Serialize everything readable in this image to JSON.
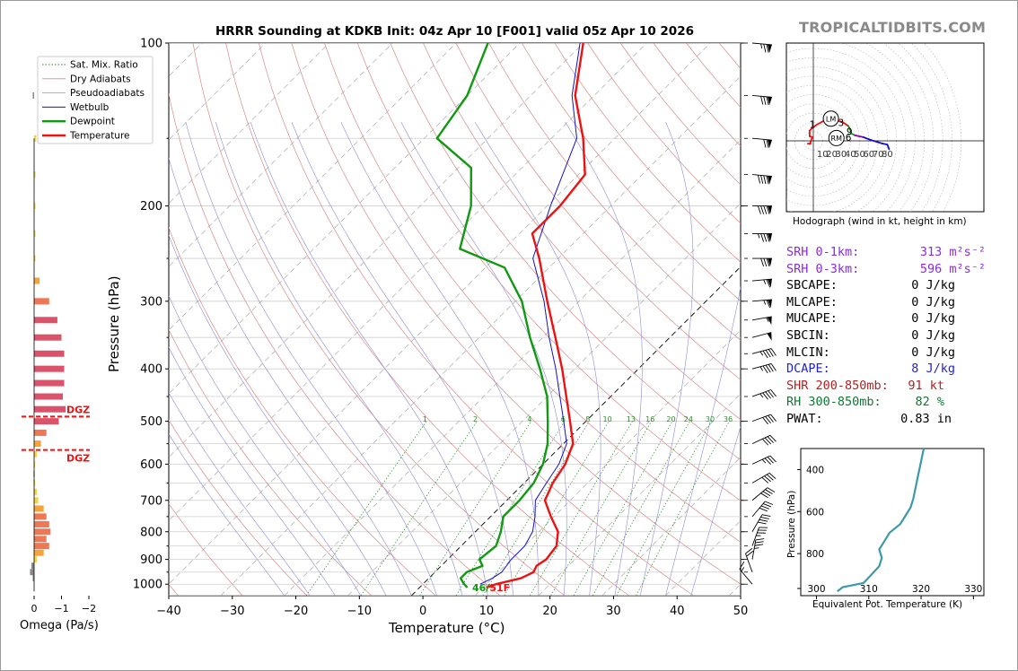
{
  "brand": "TROPICALTIDBITS.COM",
  "title": "HRRR Sounding at KDKB Init: 04z Apr 10 [F001] valid 05z Apr 10 2026",
  "colors": {
    "temperature": "#ee1111",
    "dewpoint": "#119911",
    "wetbulb": "#1111cc",
    "dry_adiabat": "#d88a8a",
    "moist_adiabat": "#a8a8a8",
    "mixing_ratio": "#2e8b2e",
    "isotherm_wet": "#8c8cd8",
    "srh": "#8a2be2",
    "dcape": "#1f1fe0",
    "shr": "#b22222",
    "rh": "#117733",
    "theta_e": "#3a9aa8",
    "dgz": "#ee1111"
  },
  "chart_data": [
    {
      "type": "line",
      "name": "skew-t",
      "xlabel": "Temperature (°C)",
      "ylabel": "Pressure (hPa)",
      "xlim": [
        -40,
        50
      ],
      "ylim": [
        1050,
        100
      ],
      "y_scale": "log",
      "x_ticks": [
        "−40",
        "−30",
        "−20",
        "−10",
        "0",
        "10",
        "20",
        "30",
        "40",
        "50"
      ],
      "y_ticks": [
        "100",
        "200",
        "300",
        "400",
        "500",
        "600",
        "700",
        "800",
        "900",
        "1000"
      ],
      "mixing_ratio_labels": [
        "1",
        "2",
        "4",
        "6",
        "8",
        "10",
        "13",
        "16",
        "20",
        "24",
        "30",
        "36"
      ],
      "legend": {
        "placement": "top-left",
        "items": [
          "Sat. Mix. Ratio",
          "Dry Adiabats",
          "Pseudoadiabats",
          "Wetbulb",
          "Dewpoint",
          "Temperature"
        ]
      },
      "surface_label": "46/51F",
      "series": [
        {
          "name": "Temperature",
          "points": [
            [
              1014,
              10.5
            ],
            [
              1000,
              11.5
            ],
            [
              975,
              14.5
            ],
            [
              950,
              15.5
            ],
            [
              925,
              15.0
            ],
            [
              900,
              15.5
            ],
            [
              850,
              15.0
            ],
            [
              800,
              13.0
            ],
            [
              750,
              9.5
            ],
            [
              700,
              6.0
            ],
            [
              650,
              4.5
            ],
            [
              600,
              3.5
            ],
            [
              550,
              1.5
            ],
            [
              500,
              -2.5
            ],
            [
              450,
              -7.0
            ],
            [
              400,
              -12.0
            ],
            [
              350,
              -18.0
            ],
            [
              300,
              -25.0
            ],
            [
              250,
              -33.0
            ],
            [
              225,
              -38.0
            ],
            [
              200,
              -38.0
            ],
            [
              175,
              -39.0
            ],
            [
              150,
              -45.0
            ],
            [
              125,
              -53.0
            ],
            [
              100,
              -60.0
            ]
          ]
        },
        {
          "name": "Dewpoint",
          "points": [
            [
              1014,
              7.5
            ],
            [
              1000,
              6.5
            ],
            [
              975,
              5.0
            ],
            [
              950,
              5.0
            ],
            [
              925,
              6.5
            ],
            [
              900,
              5.0
            ],
            [
              850,
              5.5
            ],
            [
              800,
              4.0
            ],
            [
              750,
              2.0
            ],
            [
              700,
              2.0
            ],
            [
              650,
              1.5
            ],
            [
              600,
              0.0
            ],
            [
              550,
              -2.5
            ],
            [
              500,
              -6.0
            ],
            [
              450,
              -10.0
            ],
            [
              400,
              -15.5
            ],
            [
              350,
              -22.0
            ],
            [
              300,
              -29.0
            ],
            [
              260,
              -37.0
            ],
            [
              240,
              -47.0
            ],
            [
              200,
              -52.0
            ],
            [
              170,
              -58.0
            ],
            [
              150,
              -68.0
            ],
            [
              125,
              -70.0
            ],
            [
              100,
              -75.0
            ]
          ]
        },
        {
          "name": "Wetbulb",
          "points": [
            [
              1000,
              9.0
            ],
            [
              975,
              10.0
            ],
            [
              950,
              10.5
            ],
            [
              900,
              10.0
            ],
            [
              850,
              10.0
            ],
            [
              800,
              9.0
            ],
            [
              750,
              7.0
            ],
            [
              700,
              4.5
            ],
            [
              650,
              3.5
            ],
            [
              600,
              2.5
            ],
            [
              550,
              0.5
            ],
            [
              500,
              -3.5
            ],
            [
              450,
              -8.0
            ],
            [
              400,
              -13.0
            ],
            [
              350,
              -19.0
            ],
            [
              300,
              -25.5
            ],
            [
              250,
              -34.0
            ],
            [
              200,
              -39.5
            ],
            [
              150,
              -46.0
            ],
            [
              125,
              -53.5
            ],
            [
              100,
              -60.5
            ]
          ]
        }
      ]
    },
    {
      "type": "bar",
      "name": "omega-profile",
      "xlabel": "Omega (Pa/s)",
      "xlim": [
        0,
        -2
      ],
      "x_ticks": [
        "0",
        "−1",
        "−2"
      ],
      "dgz_label": "DGZ",
      "dgz_bounds_hpa": [
        490,
        565
      ],
      "levels_hpa": [
        975,
        950,
        925,
        900,
        875,
        850,
        825,
        800,
        775,
        750,
        725,
        700,
        675,
        650,
        625,
        600,
        575,
        550,
        525,
        500,
        475,
        450,
        425,
        400,
        375,
        350,
        325,
        300,
        275,
        250,
        225,
        200,
        175,
        150,
        125
      ],
      "values": [
        -0.05,
        -0.15,
        -0.1,
        0.1,
        0.35,
        0.55,
        0.45,
        0.6,
        0.55,
        0.45,
        0.35,
        0.15,
        0.1,
        0.02,
        -0.02,
        0.0,
        0.1,
        0.25,
        0.45,
        0.9,
        1.15,
        1.05,
        1.1,
        1.1,
        1.1,
        1.0,
        0.85,
        0.55,
        0.2,
        0.05,
        0.05,
        0.05,
        0.05,
        0.08,
        -0.05
      ],
      "note": "positive = rising (plotted left→right toward −2 axis tick)"
    },
    {
      "type": "line",
      "name": "hodograph",
      "caption": "Hodograph (wind in kt, height in km)",
      "ring_labels": [
        "10",
        "20",
        "30",
        "40",
        "50",
        "60",
        "70",
        "80"
      ],
      "height_labels": [
        "1",
        "2",
        "3",
        "6",
        "9"
      ],
      "motion_labels": [
        "LM",
        "RM"
      ],
      "points_kt": [
        [
          -6,
          -3
        ],
        [
          -3,
          -3
        ],
        [
          -3,
          -1
        ],
        [
          -1,
          4
        ],
        [
          -4,
          5
        ],
        [
          -4,
          8
        ],
        [
          -4,
          11
        ],
        [
          -1,
          14
        ],
        [
          3,
          17
        ],
        [
          10,
          21
        ],
        [
          18,
          24
        ],
        [
          26,
          22
        ],
        [
          32,
          20
        ],
        [
          38,
          16
        ],
        [
          40,
          12
        ],
        [
          41,
          8
        ],
        [
          45,
          6
        ],
        [
          54,
          4
        ],
        [
          62,
          1
        ],
        [
          75,
          -3
        ],
        [
          80,
          -4
        ],
        [
          82,
          -9
        ]
      ],
      "lm_kt": [
        19,
        24
      ],
      "rm_kt": [
        25,
        3
      ]
    },
    {
      "type": "line",
      "name": "theta-e-profile",
      "xlabel": "Equivalent Pot. Temperature (K)",
      "ylabel": "Pressure (hPa)",
      "xlim": [
        297,
        332
      ],
      "ylim": [
        1000,
        300
      ],
      "x_ticks": [
        "300",
        "310",
        "320",
        "330"
      ],
      "y_ticks": [
        "400",
        "600",
        "800"
      ],
      "points": [
        [
          980,
          304
        ],
        [
          960,
          305
        ],
        [
          940,
          309
        ],
        [
          900,
          310.5
        ],
        [
          860,
          312
        ],
        [
          820,
          312.5
        ],
        [
          780,
          312
        ],
        [
          740,
          313
        ],
        [
          700,
          314
        ],
        [
          660,
          316
        ],
        [
          620,
          317
        ],
        [
          580,
          318
        ],
        [
          540,
          318.5
        ],
        [
          480,
          319
        ],
        [
          420,
          319.5
        ],
        [
          360,
          320
        ],
        [
          300,
          320.5
        ]
      ]
    }
  ],
  "params": [
    {
      "label": "SRH 0-1km:",
      "value": "313 m²s⁻²",
      "color": "srh"
    },
    {
      "label": "SRH 0-3km:",
      "value": "596 m²s⁻²",
      "color": "srh"
    },
    {
      "label": "SBCAPE:",
      "value": "0 J/kg",
      "color": "black"
    },
    {
      "label": "MLCAPE:",
      "value": "0 J/kg",
      "color": "black"
    },
    {
      "label": "MUCAPE:",
      "value": "0 J/kg",
      "color": "black"
    },
    {
      "label": "SBCIN:",
      "value": "0 J/kg",
      "color": "black"
    },
    {
      "label": "MLCIN:",
      "value": "0 J/kg",
      "color": "black"
    },
    {
      "label": "DCAPE:",
      "value": "8 J/kg",
      "color": "dcape"
    },
    {
      "label": "SHR 200-850mb:",
      "value": "91 kt",
      "color": "shr"
    },
    {
      "label": "RH 300-850mb:",
      "value": "82 %",
      "color": "rh"
    },
    {
      "label": "PWAT:",
      "value": "0.83 in",
      "color": "black"
    }
  ],
  "wind_barbs": {
    "levels_hpa": [
      100,
      125,
      150,
      175,
      200,
      225,
      250,
      275,
      300,
      325,
      350,
      375,
      400,
      450,
      500,
      550,
      600,
      650,
      700,
      750,
      800,
      850,
      900,
      950,
      1000
    ],
    "speed_kt": [
      75,
      80,
      70,
      90,
      90,
      85,
      80,
      65,
      65,
      55,
      50,
      45,
      45,
      45,
      40,
      40,
      35,
      40,
      40,
      40,
      40,
      35,
      35,
      20,
      15
    ],
    "dir_deg": [
      275,
      275,
      275,
      275,
      270,
      270,
      270,
      265,
      265,
      260,
      255,
      255,
      255,
      250,
      250,
      245,
      245,
      240,
      230,
      220,
      210,
      200,
      190,
      160,
      140
    ]
  }
}
